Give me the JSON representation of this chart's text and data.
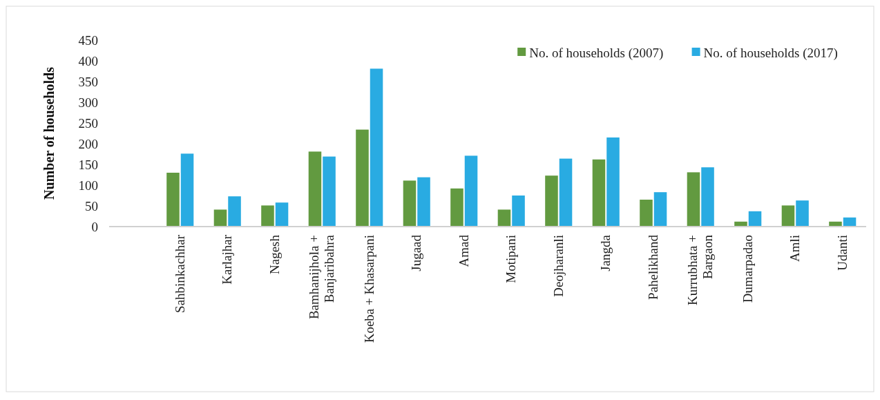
{
  "chart_data": {
    "type": "bar",
    "ylabel": "Number of households",
    "categories": [
      null,
      "Sahbinkachhar",
      "Karlajhar",
      "Nagesh",
      "Bamhanijhola + Banjaribahra",
      "Koeba + Khasarpani",
      "Jugaad",
      "Amad",
      "Motipani",
      "Deojharanli",
      "Jangda",
      "Pahelikhand",
      "Kurrubhata + Bargaon",
      "Dumarpadao",
      "Amli",
      "Udanti"
    ],
    "series": [
      {
        "name": "No. of households (2007)",
        "color": "#629a40",
        "values": [
          null,
          130,
          41,
          51,
          181,
          234,
          111,
          92,
          41,
          123,
          162,
          65,
          131,
          12,
          51,
          12
        ]
      },
      {
        "name": "No. of households (2017)",
        "color": "#29abe2",
        "values": [
          null,
          176,
          73,
          58,
          169,
          381,
          119,
          171,
          75,
          164,
          215,
          83,
          143,
          37,
          63,
          22
        ]
      }
    ],
    "ylim": [
      0,
      450
    ],
    "yticks": [
      0,
      50,
      100,
      150,
      200,
      250,
      300,
      350,
      400,
      450
    ],
    "grid": false,
    "legend": "top right"
  }
}
